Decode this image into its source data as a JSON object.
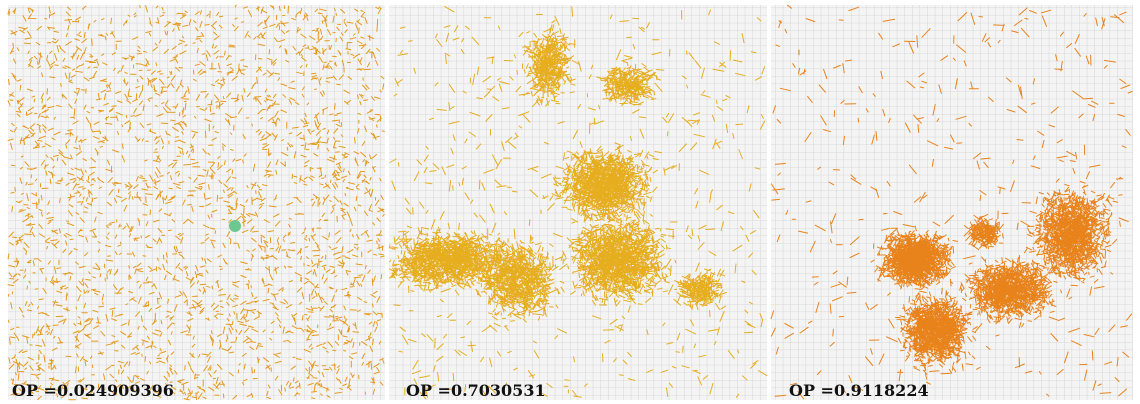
{
  "panels": [
    {
      "label": "OP =0.024909396"
    },
    {
      "label": "OP =0.7030531"
    },
    {
      "label": "OP =0.9118224"
    }
  ]
}
